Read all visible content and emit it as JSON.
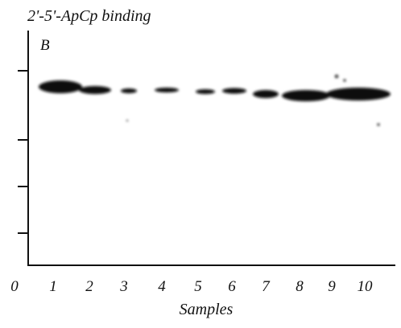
{
  "title": "2'-5'-ApCp  binding",
  "panel": "B",
  "x_labels": [
    "0",
    "1",
    "2",
    "3",
    "4",
    "5",
    "6",
    "7",
    "8",
    "9",
    "10"
  ],
  "x_axis_label": "Samples"
}
